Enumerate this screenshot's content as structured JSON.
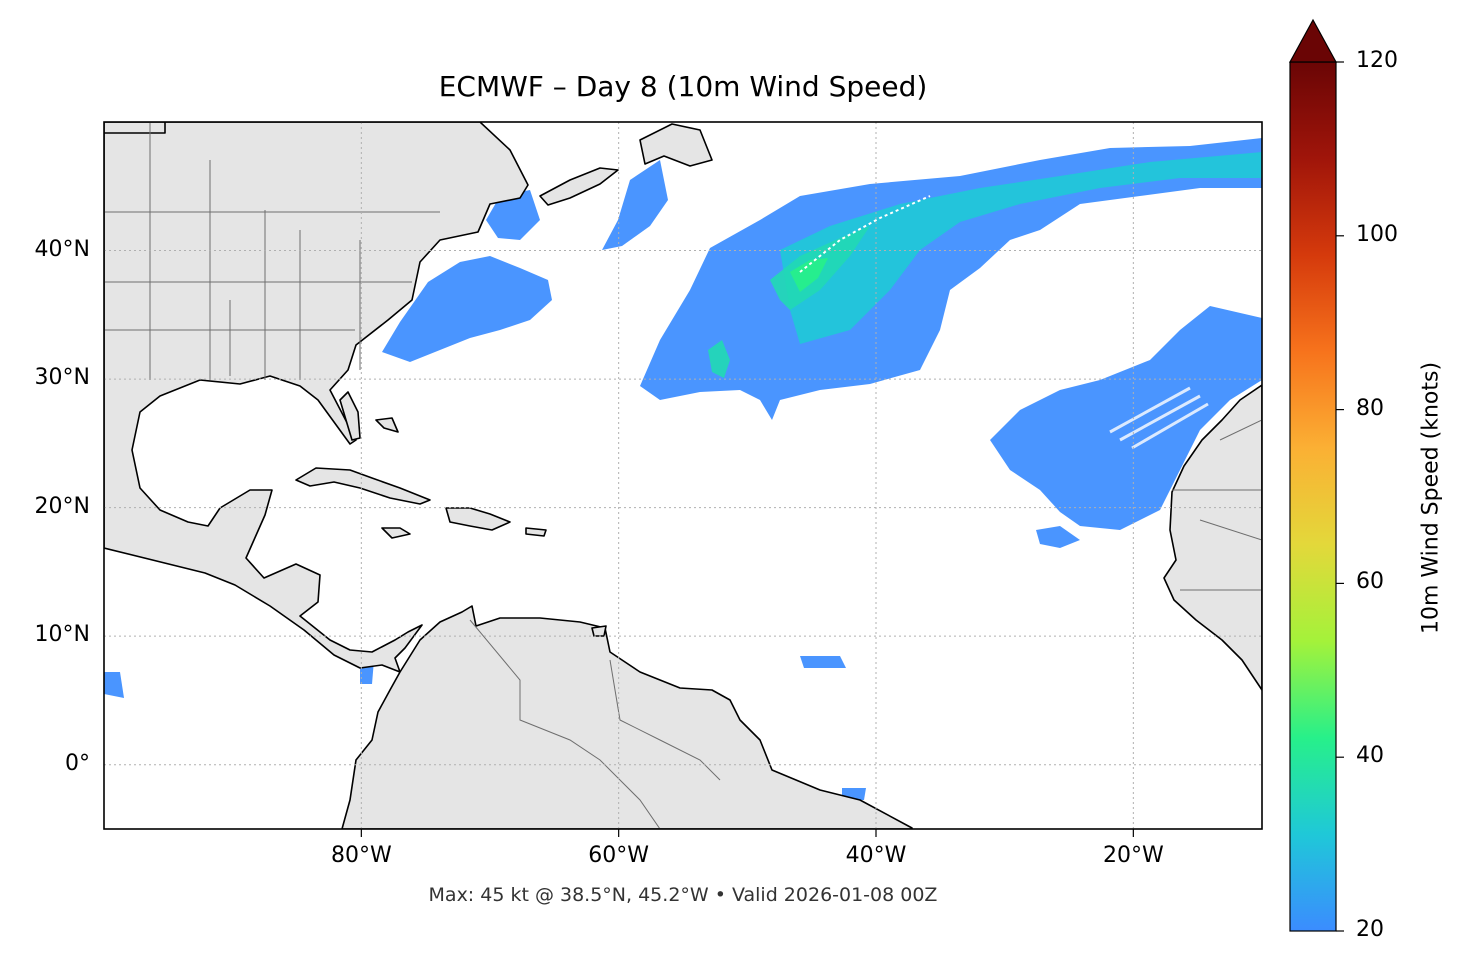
{
  "title": "ECMWF – Day 8 (10m Wind Speed)",
  "footnote": "Max: 45 kt @ 38.5°N, 45.2°W • Valid 2026-01-08 00Z",
  "map": {
    "extent": {
      "lon_min": -100,
      "lon_max": -10,
      "lat_min": -5,
      "lat_max": 50
    },
    "lat_ticks": [
      {
        "value": 40,
        "label": "40°N"
      },
      {
        "value": 30,
        "label": "30°N"
      },
      {
        "value": 20,
        "label": "20°N"
      },
      {
        "value": 10,
        "label": "10°N"
      },
      {
        "value": 0,
        "label": "0°"
      }
    ],
    "lon_ticks": [
      {
        "value": -80,
        "label": "80°W"
      },
      {
        "value": -60,
        "label": "60°W"
      },
      {
        "value": -40,
        "label": "40°W"
      },
      {
        "value": -20,
        "label": "20°W"
      }
    ],
    "gridlines": true,
    "land_color": "#e5e5e5",
    "ocean_color": "#ffffff",
    "max_marker": {
      "lat": 38.5,
      "lon": -45.2,
      "value": 45
    }
  },
  "colorbar": {
    "label": "10m Wind Speed (knots)",
    "min": 20,
    "max": 120,
    "extend": "max",
    "ticks": [
      {
        "value": 120,
        "label": "120"
      },
      {
        "value": 100,
        "label": "100"
      },
      {
        "value": 80,
        "label": "80"
      },
      {
        "value": 60,
        "label": "60"
      },
      {
        "value": 40,
        "label": "40"
      },
      {
        "value": 20,
        "label": "20"
      }
    ],
    "colors": [
      "#3b8cff",
      "#1fc8d8",
      "#27f08a",
      "#a4f23a",
      "#e3d83a",
      "#fbb034",
      "#f7731c",
      "#d53a0c",
      "#a0150a",
      "#6a0505"
    ]
  },
  "chart_data": {
    "type": "heatmap",
    "variable": "10m Wind Speed (knots)",
    "units": "knots",
    "extent": {
      "lon": [
        -100,
        -10
      ],
      "lat": [
        -5,
        50
      ]
    },
    "regions": [
      {
        "lon_range": [
          -77,
          -65
        ],
        "lat_range": [
          32,
          39
        ],
        "speed_kt": 25
      },
      {
        "lon_range": [
          -60,
          -38
        ],
        "lat_range": [
          28,
          45
        ],
        "speed_kt": 28
      },
      {
        "lon_range": [
          -38,
          -10
        ],
        "lat_range": [
          36,
          49
        ],
        "speed_kt": 25
      },
      {
        "lon_range": [
          -30,
          -12
        ],
        "lat_range": [
          19,
          35
        ],
        "speed_kt": 23
      },
      {
        "lon_range": [
          -57,
          -52
        ],
        "lat_range": [
          29,
          32
        ],
        "speed_kt": 35
      }
    ],
    "max": {
      "value": 45,
      "lat": 38.5,
      "lon": -45.2
    },
    "valid": "2026-01-08 00Z"
  }
}
